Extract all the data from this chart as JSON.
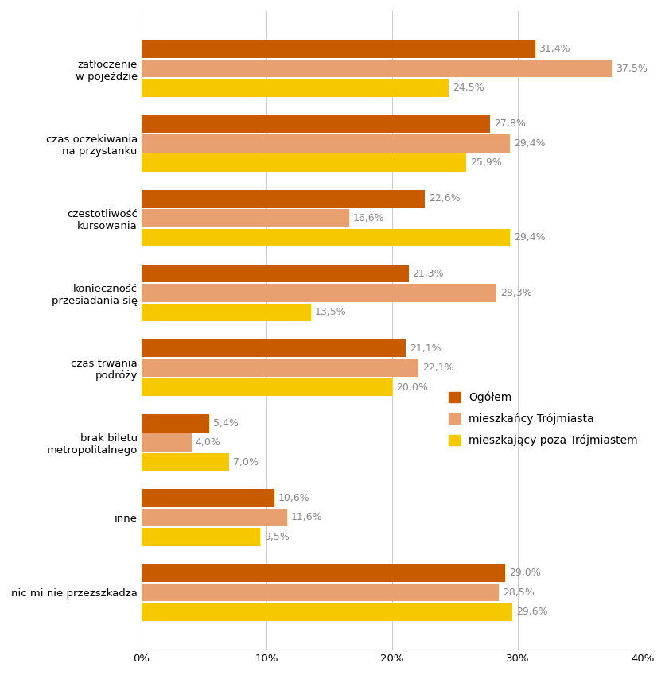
{
  "categories": [
    "zatłoczenie\nw pojeździe",
    "czas oczekiwania\nna przystanku",
    "czestotliwość\nkursowania",
    "konieczność\nprzesiadania się",
    "czas trwania\npodróży",
    "brak biletu\nmetropolitalnego",
    "inne",
    "nic mi nie przezszkadza"
  ],
  "series": [
    {
      "name": "Ogółem",
      "color": "#C85A00",
      "values": [
        31.4,
        27.8,
        22.6,
        21.3,
        21.1,
        5.4,
        10.6,
        29.0
      ]
    },
    {
      "name": "mieszkańcy Trójmiasta",
      "color": "#E8A070",
      "values": [
        37.5,
        29.4,
        16.6,
        28.3,
        22.1,
        4.0,
        11.6,
        28.5
      ]
    },
    {
      "name": "mieszkający poza Trójmiastem",
      "color": "#F5C800",
      "values": [
        24.5,
        25.9,
        29.4,
        13.5,
        20.0,
        7.0,
        9.5,
        29.6
      ]
    }
  ],
  "xlim": [
    0,
    40
  ],
  "xticks": [
    0,
    10,
    20,
    30,
    40
  ],
  "xticklabels": [
    "0%",
    "10%",
    "20%",
    "30%",
    "40%"
  ],
  "bar_height": 0.26,
  "label_fontsize": 9,
  "tick_fontsize": 9.5,
  "legend_fontsize": 10,
  "value_label_color": "#888888",
  "background_color": "#FFFFFF"
}
